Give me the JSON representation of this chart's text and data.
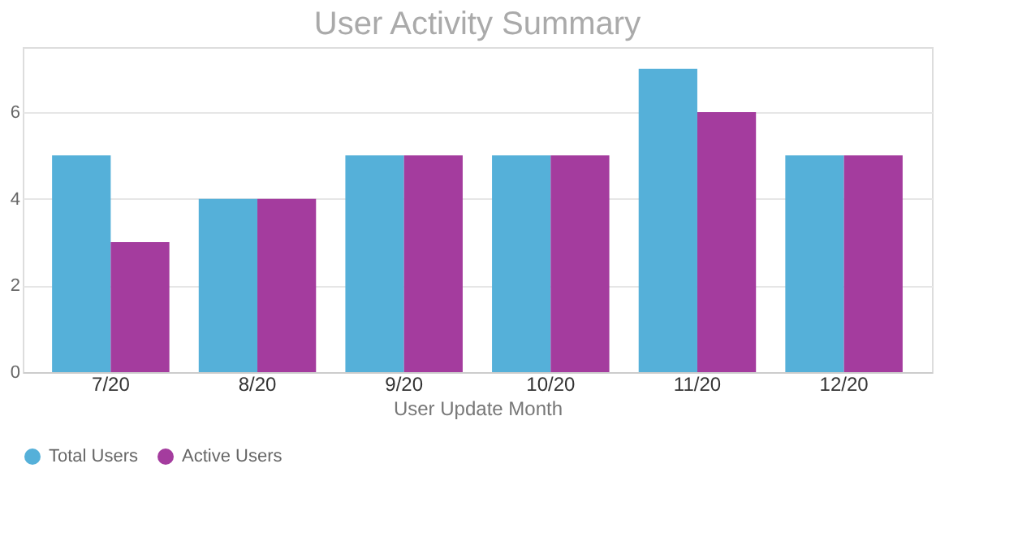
{
  "chart_data": {
    "type": "bar",
    "title": "User Activity Summary",
    "xlabel": "User Update Month",
    "categories": [
      "7/20",
      "8/20",
      "9/20",
      "10/20",
      "11/20",
      "12/20"
    ],
    "series": [
      {
        "name": "Total Users",
        "color": "#55b0d9",
        "values": [
          5,
          4,
          5,
          5,
          7,
          5
        ]
      },
      {
        "name": "Active Users",
        "color": "#a43c9e",
        "values": [
          3,
          4,
          5,
          5,
          6,
          5
        ]
      }
    ],
    "ylim": [
      0,
      7.5
    ],
    "yticks": [
      0,
      2,
      4,
      6
    ],
    "grid": "y",
    "legend": "bottom"
  }
}
